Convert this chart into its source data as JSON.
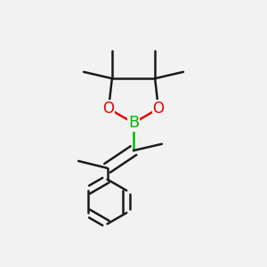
{
  "bg_color": "#f2f2f2",
  "bond_color": "#1a1a1a",
  "bond_width": 1.8,
  "B_color": "#00bb00",
  "O_color": "#ee0000",
  "fig_size": [
    3.0,
    3.0
  ],
  "dpi": 100,
  "B_label": "B",
  "O_label": "O",
  "B_fontsize": 13,
  "O_fontsize": 12
}
